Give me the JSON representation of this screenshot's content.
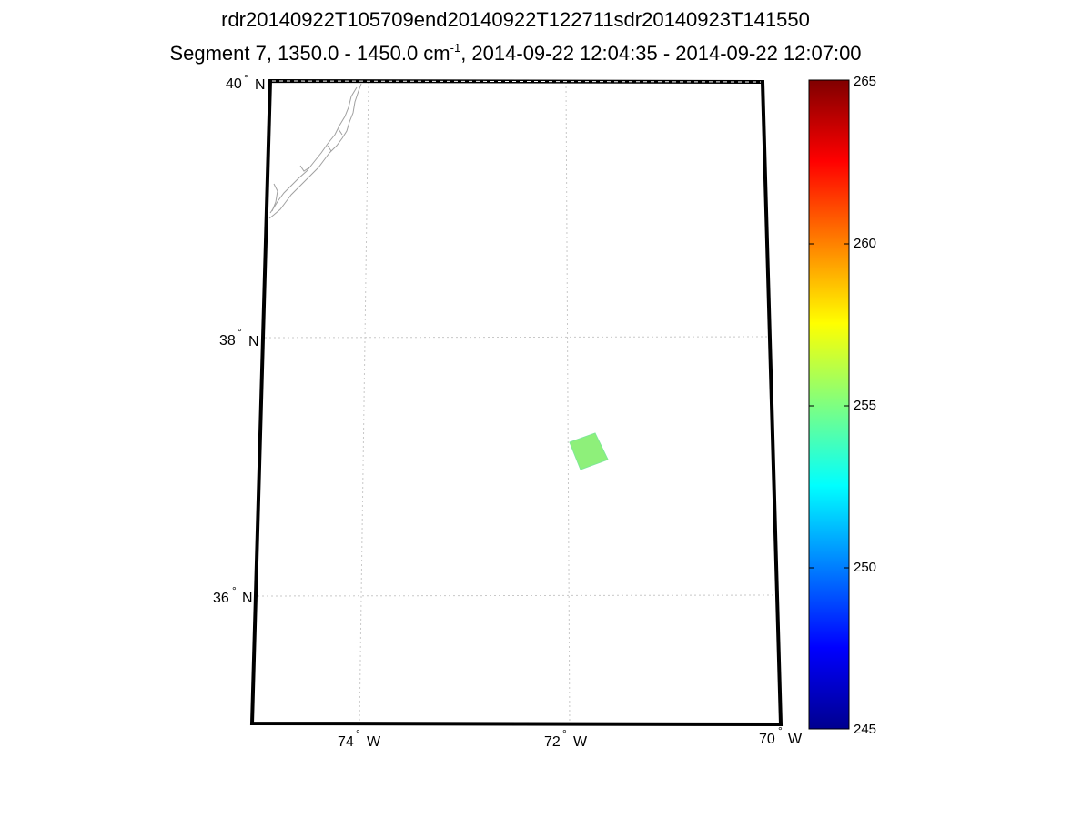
{
  "title": {
    "line1": "rdr20140922T105709end20140922T122711sdr20140923T141550",
    "line2_prefix": "Segment 7, 1350.0 - 1450.0 cm",
    "line2_sup": "-1",
    "line2_suffix": ", 2014-09-22 12:04:35 - 2014-09-22 12:07:00"
  },
  "map": {
    "lat_ticks": [
      {
        "value": "40",
        "hemi": "N"
      },
      {
        "value": "38",
        "hemi": "N"
      },
      {
        "value": "36",
        "hemi": "N"
      }
    ],
    "lon_ticks": [
      {
        "value": "74",
        "hemi": "W"
      },
      {
        "value": "72",
        "hemi": "W"
      },
      {
        "value": "70",
        "hemi": "W"
      }
    ],
    "degree_symbol": "°",
    "grid": true,
    "coastline_color": "#a0a0a0",
    "swath": {
      "value": 255.5,
      "color": "#8ef07a"
    }
  },
  "colorbar": {
    "min": 245,
    "max": 265,
    "ticks": [
      "245",
      "250",
      "255",
      "260",
      "265"
    ],
    "colormap": "jet"
  }
}
